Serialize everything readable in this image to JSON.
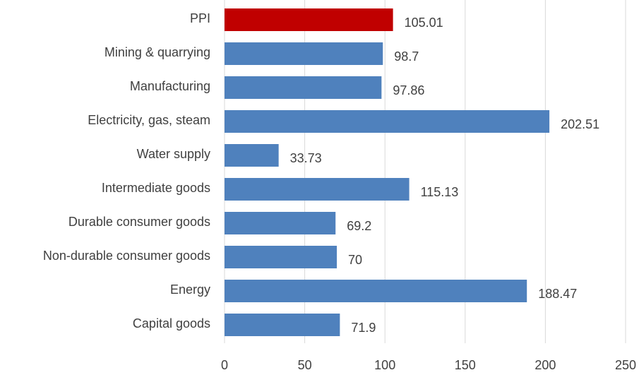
{
  "chart_data": {
    "type": "bar",
    "orientation": "horizontal",
    "categories": [
      "PPI",
      "Mining & quarrying",
      "Manufacturing",
      "Electricity, gas, steam",
      "Water supply",
      "Intermediate goods",
      "Durable consumer goods",
      "Non-durable consumer goods",
      "Energy",
      "Capital goods"
    ],
    "values": [
      105.01,
      98.7,
      97.86,
      202.51,
      33.73,
      115.13,
      69.2,
      70,
      188.47,
      71.9
    ],
    "colors": [
      "#c00000",
      "#4f81bd",
      "#4f81bd",
      "#4f81bd",
      "#4f81bd",
      "#4f81bd",
      "#4f81bd",
      "#4f81bd",
      "#4f81bd",
      "#4f81bd"
    ],
    "xlim": [
      0,
      250
    ],
    "xticks": [
      0,
      50,
      100,
      150,
      200,
      250
    ],
    "grid": true
  }
}
